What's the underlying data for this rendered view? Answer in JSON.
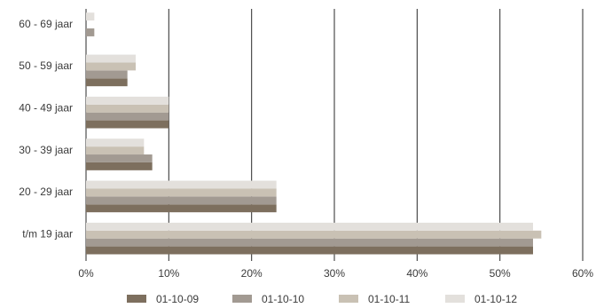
{
  "chart_data": {
    "type": "bar",
    "orientation": "horizontal",
    "categories": [
      "60 - 69 jaar",
      "50 - 59 jaar",
      "40 - 49 jaar",
      "30 - 39 jaar",
      "20 - 29 jaar",
      "t/m 19 jaar"
    ],
    "series": [
      {
        "name": "01-10-09",
        "color": "#7d6f5e",
        "values": [
          0,
          5,
          10,
          8,
          23,
          54
        ]
      },
      {
        "name": "01-10-10",
        "color": "#a29a92",
        "values": [
          1,
          5,
          10,
          8,
          23,
          54
        ]
      },
      {
        "name": "01-10-11",
        "color": "#c9c1b4",
        "values": [
          0,
          6,
          10,
          7,
          23,
          55
        ]
      },
      {
        "name": "01-10-12",
        "color": "#e3e0dc",
        "values": [
          1,
          6,
          10,
          7,
          23,
          54
        ]
      }
    ],
    "xlim": [
      0,
      60
    ],
    "xticks": [
      "0%",
      "10%",
      "20%",
      "30%",
      "40%",
      "50%",
      "60%"
    ],
    "grid": "vertical",
    "legend_position": "bottom",
    "title": "",
    "xlabel": "",
    "ylabel": ""
  }
}
